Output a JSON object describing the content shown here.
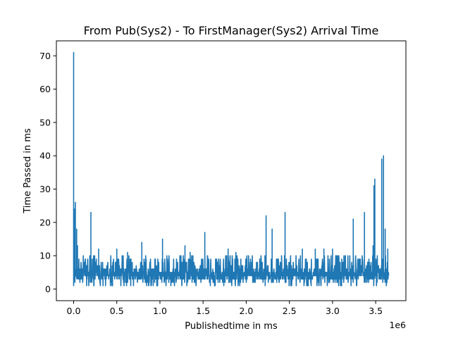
{
  "chart_data": {
    "type": "line",
    "title": "From Pub(Sys2) - To FirstManager(Sys2) Arrival Time",
    "xlabel": "Publishedtime in ms",
    "ylabel": "Time Passed in ms",
    "x_offset_label": "1e6",
    "xlim": [
      -200000,
      3850000
    ],
    "ylim": [
      -3.5,
      74.5
    ],
    "x_ticks": [
      {
        "value": 0,
        "label": "0.0"
      },
      {
        "value": 500000,
        "label": "0.5"
      },
      {
        "value": 1000000,
        "label": "1.0"
      },
      {
        "value": 1500000,
        "label": "1.5"
      },
      {
        "value": 2000000,
        "label": "2.0"
      },
      {
        "value": 2500000,
        "label": "2.5"
      },
      {
        "value": 3000000,
        "label": "3.0"
      },
      {
        "value": 3500000,
        "label": "3.5"
      }
    ],
    "y_ticks": [
      {
        "value": 0,
        "label": "0"
      },
      {
        "value": 10,
        "label": "10"
      },
      {
        "value": 20,
        "label": "20"
      },
      {
        "value": 30,
        "label": "30"
      },
      {
        "value": 40,
        "label": "40"
      },
      {
        "value": 50,
        "label": "50"
      },
      {
        "value": 60,
        "label": "60"
      },
      {
        "value": 70,
        "label": "70"
      }
    ],
    "grid": false,
    "legend": "none",
    "series": [
      {
        "color": "#1f77b4",
        "x_range": [
          0,
          3650000
        ],
        "baseline_low": 1,
        "baseline_high": 10,
        "spikes": [
          {
            "x": 0,
            "y": 71
          },
          {
            "x": 10000,
            "y": 24
          },
          {
            "x": 20000,
            "y": 26
          },
          {
            "x": 35000,
            "y": 18
          },
          {
            "x": 45000,
            "y": 13
          },
          {
            "x": 200000,
            "y": 23
          },
          {
            "x": 290000,
            "y": 12
          },
          {
            "x": 500000,
            "y": 12
          },
          {
            "x": 625000,
            "y": 11
          },
          {
            "x": 790000,
            "y": 14
          },
          {
            "x": 1030000,
            "y": 15
          },
          {
            "x": 1290000,
            "y": 13
          },
          {
            "x": 1350000,
            "y": 11
          },
          {
            "x": 1520000,
            "y": 17
          },
          {
            "x": 1790000,
            "y": 12
          },
          {
            "x": 1880000,
            "y": 11
          },
          {
            "x": 2230000,
            "y": 22
          },
          {
            "x": 2300000,
            "y": 18
          },
          {
            "x": 2450000,
            "y": 23
          },
          {
            "x": 2650000,
            "y": 12
          },
          {
            "x": 2800000,
            "y": 12
          },
          {
            "x": 2900000,
            "y": 12
          },
          {
            "x": 3000000,
            "y": 12
          },
          {
            "x": 3240000,
            "y": 21
          },
          {
            "x": 3370000,
            "y": 23
          },
          {
            "x": 3470000,
            "y": 13
          },
          {
            "x": 3480000,
            "y": 31
          },
          {
            "x": 3490000,
            "y": 33
          },
          {
            "x": 3570000,
            "y": 39
          },
          {
            "x": 3590000,
            "y": 40
          },
          {
            "x": 3610000,
            "y": 18
          },
          {
            "x": 3640000,
            "y": 12
          }
        ],
        "dips": [
          {
            "x": 850000,
            "y": 3
          },
          {
            "x": 2640000,
            "y": 3
          }
        ]
      }
    ]
  }
}
